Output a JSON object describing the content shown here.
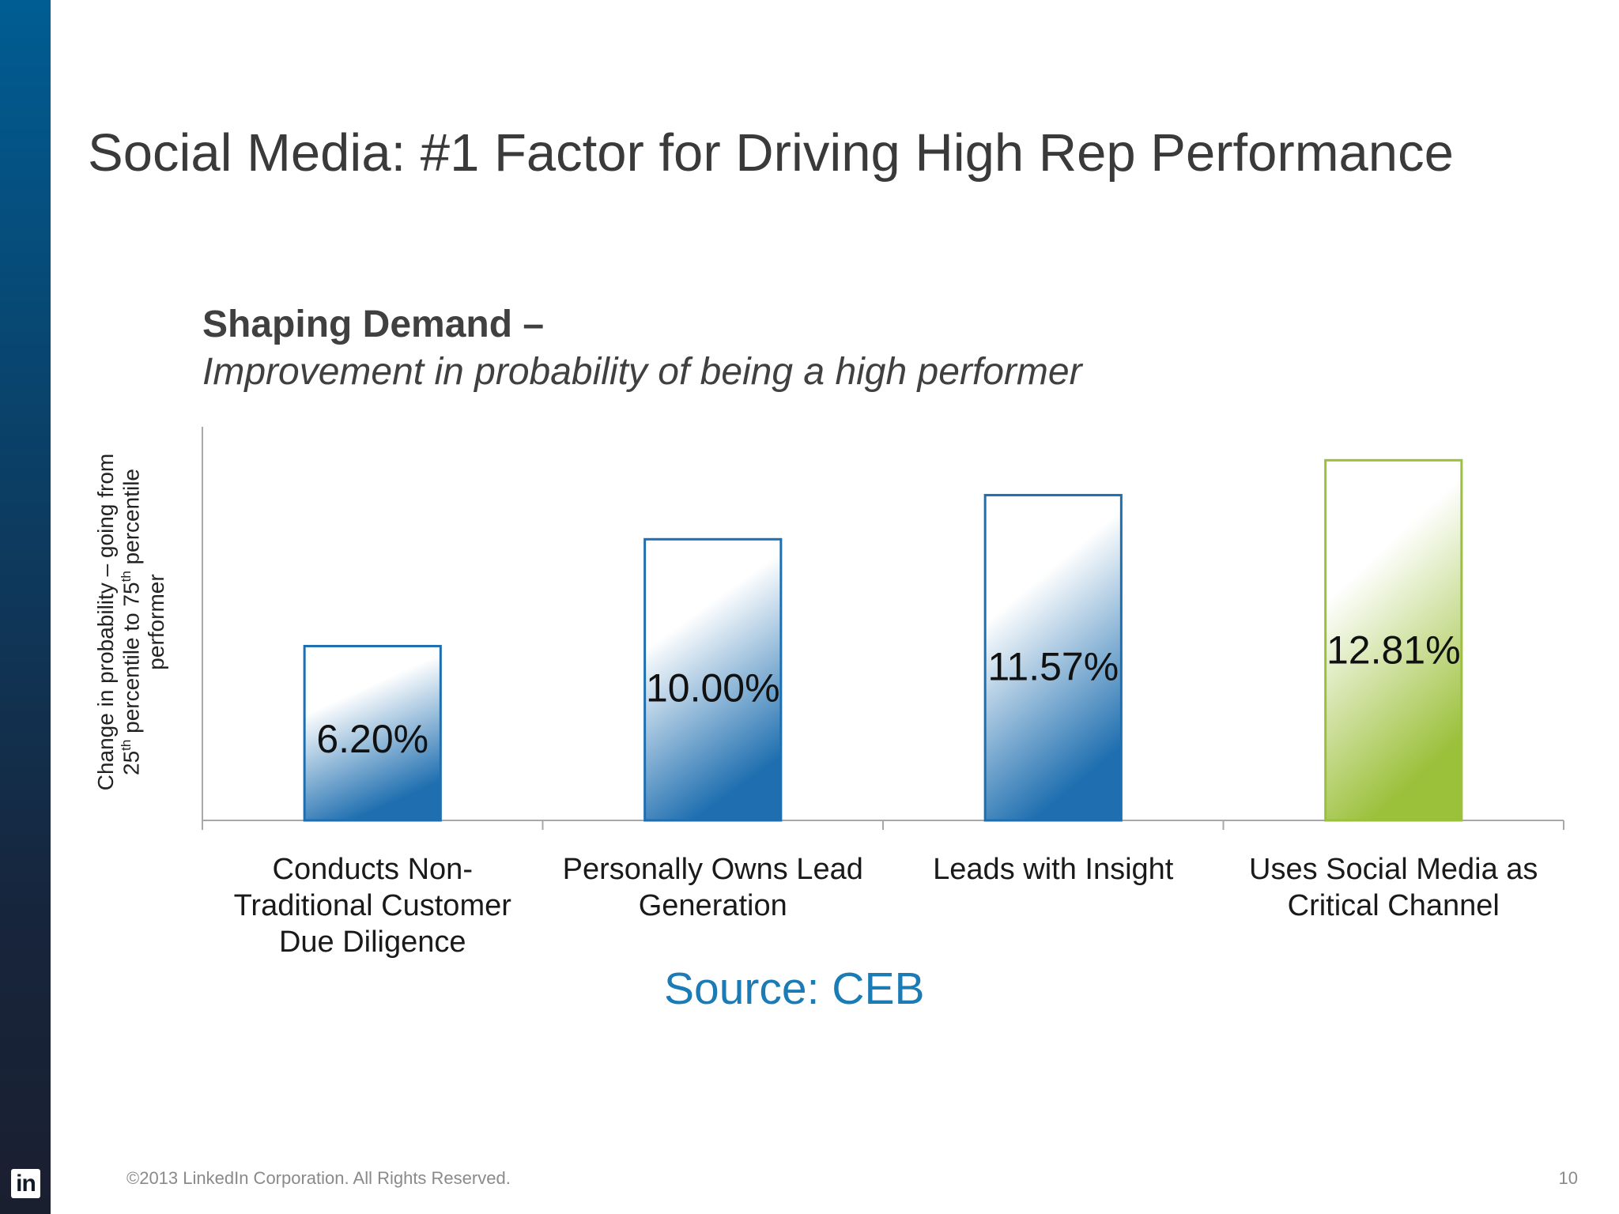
{
  "slide": {
    "title": "Social Media: #1 Factor for Driving High Rep Performance",
    "source": "Source: CEB",
    "footer": "©2013 LinkedIn Corporation. All Rights Reserved.",
    "page_number": "10",
    "logo_text": "in"
  },
  "chart_data": {
    "type": "bar",
    "title": "Shaping Demand –",
    "subtitle": "Improvement in probability of being a high performer",
    "ylabel_parts": {
      "a": "Change in probability – going from 25",
      "sup1": "th",
      "b": " percentile to 75",
      "sup2": "th",
      "c": " percentile performer"
    },
    "categories": [
      [
        "Conducts Non-",
        "Traditional Customer",
        "Due Diligence"
      ],
      [
        "Personally Owns Lead",
        "Generation"
      ],
      [
        "Leads with Insight"
      ],
      [
        "Uses Social Media as",
        "Critical Channel"
      ]
    ],
    "values": [
      6.2,
      10.0,
      11.57,
      12.81
    ],
    "value_labels": [
      "6.20%",
      "10.00%",
      "11.57%",
      "12.81%"
    ],
    "ylim": [
      0,
      14
    ],
    "highlight_index": 3,
    "colors": {
      "bar_blue": "#1f6fb0",
      "bar_green": "#9bc03a",
      "axis": "#a8a8a8"
    },
    "grid": false,
    "legend": "none"
  }
}
